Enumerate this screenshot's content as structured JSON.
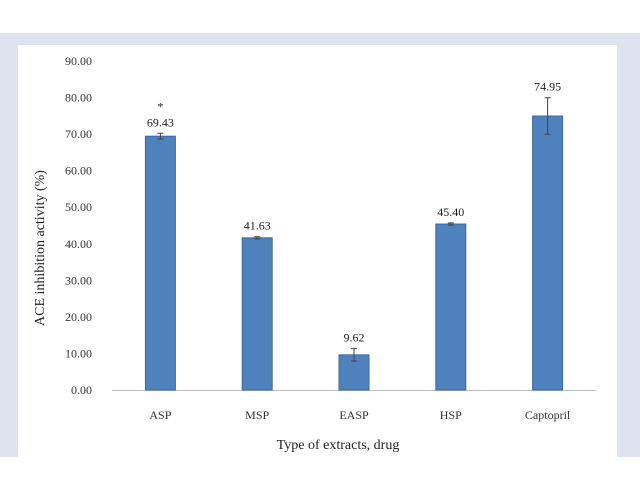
{
  "chart_data": {
    "type": "bar",
    "title": "",
    "xlabel": "Type of extracts, drug",
    "ylabel": "ACE inhibition activity (%)",
    "ylim": [
      0,
      90
    ],
    "yticks": [
      "0.00",
      "10.00",
      "20.00",
      "30.00",
      "40.00",
      "50.00",
      "60.00",
      "70.00",
      "80.00",
      "90.00"
    ],
    "grid": false,
    "legend": "none",
    "categories": [
      "ASP",
      "MSP",
      "EASP",
      "HSP",
      "Captopril"
    ],
    "values": [
      69.43,
      41.63,
      9.62,
      45.4,
      74.95
    ],
    "value_labels": [
      "69.43",
      "41.63",
      "9.62",
      "45.40",
      "74.95"
    ],
    "errors": [
      0.8,
      0.3,
      1.7,
      0.3,
      5.0
    ],
    "annotations": [
      {
        "category": "ASP",
        "text": "*"
      }
    ],
    "colors": {
      "bar": "#4f81bd",
      "bar_edge": "#3c6a9f",
      "error": "#444444",
      "band": "#dfe2ef"
    }
  }
}
